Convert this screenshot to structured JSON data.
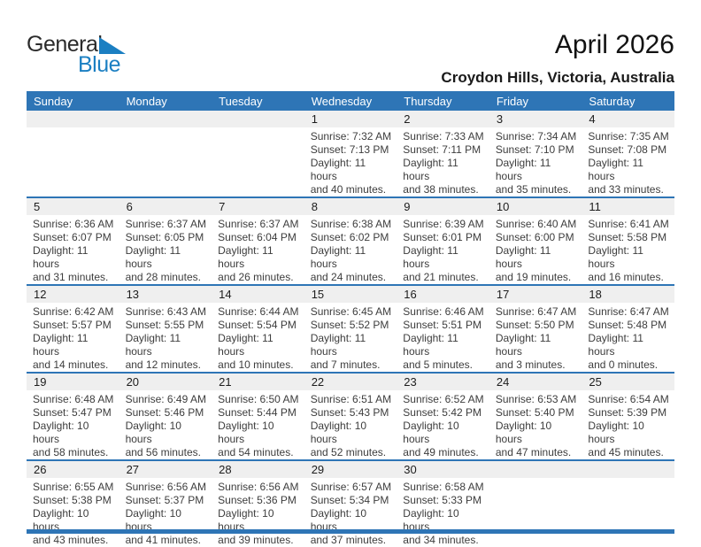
{
  "header": {
    "logo_part1": "General",
    "logo_part2": "Blue",
    "month_title": "April 2026",
    "location": "Croydon Hills, Victoria, Australia"
  },
  "colors": {
    "accent_blue": "#2E75B6",
    "logo_blue": "#1B7FC2",
    "date_band_gray": "#EFEFEF"
  },
  "weekdays": [
    "Sunday",
    "Monday",
    "Tuesday",
    "Wednesday",
    "Thursday",
    "Friday",
    "Saturday"
  ],
  "weeks": [
    [
      null,
      null,
      null,
      {
        "date": "1",
        "sunrise": "Sunrise: 7:32 AM",
        "sunset": "Sunset: 7:13 PM",
        "daylight_line1": "Daylight: 11 hours",
        "daylight_line2": "and 40 minutes."
      },
      {
        "date": "2",
        "sunrise": "Sunrise: 7:33 AM",
        "sunset": "Sunset: 7:11 PM",
        "daylight_line1": "Daylight: 11 hours",
        "daylight_line2": "and 38 minutes."
      },
      {
        "date": "3",
        "sunrise": "Sunrise: 7:34 AM",
        "sunset": "Sunset: 7:10 PM",
        "daylight_line1": "Daylight: 11 hours",
        "daylight_line2": "and 35 minutes."
      },
      {
        "date": "4",
        "sunrise": "Sunrise: 7:35 AM",
        "sunset": "Sunset: 7:08 PM",
        "daylight_line1": "Daylight: 11 hours",
        "daylight_line2": "and 33 minutes."
      }
    ],
    [
      {
        "date": "5",
        "sunrise": "Sunrise: 6:36 AM",
        "sunset": "Sunset: 6:07 PM",
        "daylight_line1": "Daylight: 11 hours",
        "daylight_line2": "and 31 minutes."
      },
      {
        "date": "6",
        "sunrise": "Sunrise: 6:37 AM",
        "sunset": "Sunset: 6:05 PM",
        "daylight_line1": "Daylight: 11 hours",
        "daylight_line2": "and 28 minutes."
      },
      {
        "date": "7",
        "sunrise": "Sunrise: 6:37 AM",
        "sunset": "Sunset: 6:04 PM",
        "daylight_line1": "Daylight: 11 hours",
        "daylight_line2": "and 26 minutes."
      },
      {
        "date": "8",
        "sunrise": "Sunrise: 6:38 AM",
        "sunset": "Sunset: 6:02 PM",
        "daylight_line1": "Daylight: 11 hours",
        "daylight_line2": "and 24 minutes."
      },
      {
        "date": "9",
        "sunrise": "Sunrise: 6:39 AM",
        "sunset": "Sunset: 6:01 PM",
        "daylight_line1": "Daylight: 11 hours",
        "daylight_line2": "and 21 minutes."
      },
      {
        "date": "10",
        "sunrise": "Sunrise: 6:40 AM",
        "sunset": "Sunset: 6:00 PM",
        "daylight_line1": "Daylight: 11 hours",
        "daylight_line2": "and 19 minutes."
      },
      {
        "date": "11",
        "sunrise": "Sunrise: 6:41 AM",
        "sunset": "Sunset: 5:58 PM",
        "daylight_line1": "Daylight: 11 hours",
        "daylight_line2": "and 16 minutes."
      }
    ],
    [
      {
        "date": "12",
        "sunrise": "Sunrise: 6:42 AM",
        "sunset": "Sunset: 5:57 PM",
        "daylight_line1": "Daylight: 11 hours",
        "daylight_line2": "and 14 minutes."
      },
      {
        "date": "13",
        "sunrise": "Sunrise: 6:43 AM",
        "sunset": "Sunset: 5:55 PM",
        "daylight_line1": "Daylight: 11 hours",
        "daylight_line2": "and 12 minutes."
      },
      {
        "date": "14",
        "sunrise": "Sunrise: 6:44 AM",
        "sunset": "Sunset: 5:54 PM",
        "daylight_line1": "Daylight: 11 hours",
        "daylight_line2": "and 10 minutes."
      },
      {
        "date": "15",
        "sunrise": "Sunrise: 6:45 AM",
        "sunset": "Sunset: 5:52 PM",
        "daylight_line1": "Daylight: 11 hours",
        "daylight_line2": "and 7 minutes."
      },
      {
        "date": "16",
        "sunrise": "Sunrise: 6:46 AM",
        "sunset": "Sunset: 5:51 PM",
        "daylight_line1": "Daylight: 11 hours",
        "daylight_line2": "and 5 minutes."
      },
      {
        "date": "17",
        "sunrise": "Sunrise: 6:47 AM",
        "sunset": "Sunset: 5:50 PM",
        "daylight_line1": "Daylight: 11 hours",
        "daylight_line2": "and 3 minutes."
      },
      {
        "date": "18",
        "sunrise": "Sunrise: 6:47 AM",
        "sunset": "Sunset: 5:48 PM",
        "daylight_line1": "Daylight: 11 hours",
        "daylight_line2": "and 0 minutes."
      }
    ],
    [
      {
        "date": "19",
        "sunrise": "Sunrise: 6:48 AM",
        "sunset": "Sunset: 5:47 PM",
        "daylight_line1": "Daylight: 10 hours",
        "daylight_line2": "and 58 minutes."
      },
      {
        "date": "20",
        "sunrise": "Sunrise: 6:49 AM",
        "sunset": "Sunset: 5:46 PM",
        "daylight_line1": "Daylight: 10 hours",
        "daylight_line2": "and 56 minutes."
      },
      {
        "date": "21",
        "sunrise": "Sunrise: 6:50 AM",
        "sunset": "Sunset: 5:44 PM",
        "daylight_line1": "Daylight: 10 hours",
        "daylight_line2": "and 54 minutes."
      },
      {
        "date": "22",
        "sunrise": "Sunrise: 6:51 AM",
        "sunset": "Sunset: 5:43 PM",
        "daylight_line1": "Daylight: 10 hours",
        "daylight_line2": "and 52 minutes."
      },
      {
        "date": "23",
        "sunrise": "Sunrise: 6:52 AM",
        "sunset": "Sunset: 5:42 PM",
        "daylight_line1": "Daylight: 10 hours",
        "daylight_line2": "and 49 minutes."
      },
      {
        "date": "24",
        "sunrise": "Sunrise: 6:53 AM",
        "sunset": "Sunset: 5:40 PM",
        "daylight_line1": "Daylight: 10 hours",
        "daylight_line2": "and 47 minutes."
      },
      {
        "date": "25",
        "sunrise": "Sunrise: 6:54 AM",
        "sunset": "Sunset: 5:39 PM",
        "daylight_line1": "Daylight: 10 hours",
        "daylight_line2": "and 45 minutes."
      }
    ],
    [
      {
        "date": "26",
        "sunrise": "Sunrise: 6:55 AM",
        "sunset": "Sunset: 5:38 PM",
        "daylight_line1": "Daylight: 10 hours",
        "daylight_line2": "and 43 minutes."
      },
      {
        "date": "27",
        "sunrise": "Sunrise: 6:56 AM",
        "sunset": "Sunset: 5:37 PM",
        "daylight_line1": "Daylight: 10 hours",
        "daylight_line2": "and 41 minutes."
      },
      {
        "date": "28",
        "sunrise": "Sunrise: 6:56 AM",
        "sunset": "Sunset: 5:36 PM",
        "daylight_line1": "Daylight: 10 hours",
        "daylight_line2": "and 39 minutes."
      },
      {
        "date": "29",
        "sunrise": "Sunrise: 6:57 AM",
        "sunset": "Sunset: 5:34 PM",
        "daylight_line1": "Daylight: 10 hours",
        "daylight_line2": "and 37 minutes."
      },
      {
        "date": "30",
        "sunrise": "Sunrise: 6:58 AM",
        "sunset": "Sunset: 5:33 PM",
        "daylight_line1": "Daylight: 10 hours",
        "daylight_line2": "and 34 minutes."
      },
      null,
      null
    ]
  ]
}
